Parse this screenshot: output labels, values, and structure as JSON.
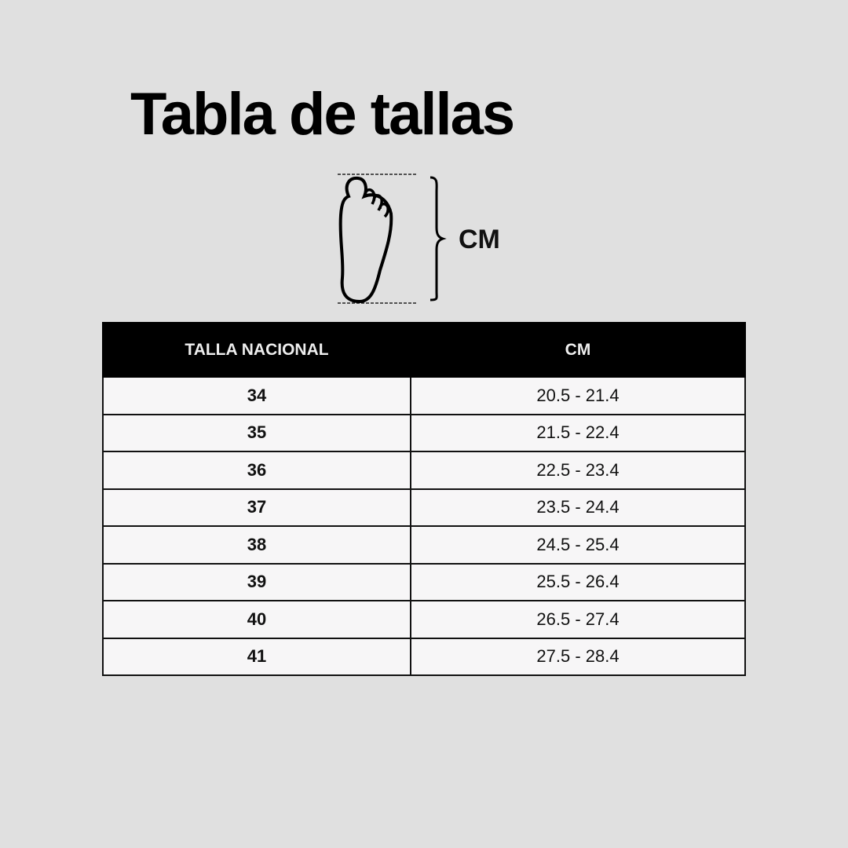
{
  "title": "Tabla de tallas",
  "diagram": {
    "icon": "foot-icon",
    "measure_label": "CM"
  },
  "table": {
    "headers": [
      "TALLA NACIONAL",
      "CM"
    ],
    "rows": [
      {
        "size": "34",
        "cm": "20.5 - 21.4"
      },
      {
        "size": "35",
        "cm": "21.5 - 22.4"
      },
      {
        "size": "36",
        "cm": "22.5 - 23.4"
      },
      {
        "size": "37",
        "cm": "23.5 - 24.4"
      },
      {
        "size": "38",
        "cm": "24.5 - 25.4"
      },
      {
        "size": "39",
        "cm": "25.5 - 26.4"
      },
      {
        "size": "40",
        "cm": "26.5 - 27.4"
      },
      {
        "size": "41",
        "cm": "27.5 - 28.4"
      }
    ]
  },
  "colors": {
    "background": "#e0e0e0",
    "header": "#000000",
    "cell": "#f7f6f7"
  }
}
